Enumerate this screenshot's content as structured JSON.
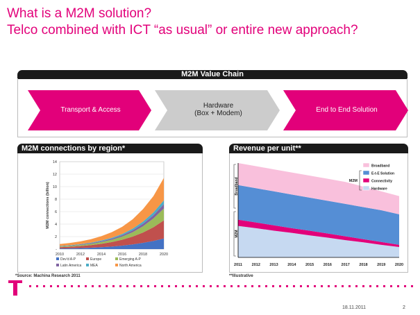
{
  "slide": {
    "title_line1": "What is a M2M solution?",
    "title_line2": "Telco combined with ICT “as usual” or entire new approach?",
    "date": "18.11.2011",
    "page_number": "2",
    "accent_color": "#e2007a"
  },
  "value_chain": {
    "header": "M2M Value Chain",
    "steps": [
      {
        "label": "Transport & Access",
        "color": "#e2007a"
      },
      {
        "label_line1": "Hardware",
        "label_line2": "(Box + Modem)",
        "color": "#cccccc"
      },
      {
        "label": "End to End Solution",
        "color": "#e2007a"
      }
    ]
  },
  "connections_panel": {
    "header": "M2M connections by region*",
    "footnote": "*Source: Machina Research 2011"
  },
  "revenue_panel": {
    "header": "Revenue per unit**",
    "footnote": "**Illustrative"
  },
  "chart_data": [
    {
      "type": "area",
      "stacked": true,
      "ylabel": "M2M connections (billion)",
      "ylim": [
        0,
        14
      ],
      "yticks": [
        "-",
        "2",
        "4",
        "6",
        "8",
        "10",
        "12",
        "14"
      ],
      "x": [
        2010,
        2011,
        2012,
        2013,
        2014,
        2015,
        2016,
        2017,
        2018,
        2019,
        2020
      ],
      "xticks": [
        "2010",
        "2012",
        "2014",
        "2016",
        "2018",
        "2020"
      ],
      "legend_position": "bottom",
      "series": [
        {
          "name": "Dev'd A-P",
          "color": "#4472c4",
          "values": [
            0.1,
            0.13,
            0.17,
            0.22,
            0.3,
            0.4,
            0.55,
            0.75,
            1.0,
            1.3,
            1.7
          ]
        },
        {
          "name": "Europe",
          "color": "#c0504d",
          "values": [
            0.2,
            0.25,
            0.32,
            0.42,
            0.55,
            0.72,
            0.95,
            1.25,
            1.65,
            2.2,
            2.9
          ]
        },
        {
          "name": "Emerging A-P",
          "color": "#9bbb59",
          "values": [
            0.1,
            0.12,
            0.15,
            0.2,
            0.27,
            0.37,
            0.5,
            0.7,
            1.0,
            1.4,
            1.9
          ]
        },
        {
          "name": "Latin America",
          "color": "#8064a2",
          "values": [
            0.05,
            0.06,
            0.08,
            0.1,
            0.13,
            0.17,
            0.22,
            0.3,
            0.4,
            0.52,
            0.7
          ]
        },
        {
          "name": "MEA",
          "color": "#4bacc6",
          "values": [
            0.05,
            0.06,
            0.07,
            0.09,
            0.12,
            0.15,
            0.2,
            0.27,
            0.35,
            0.46,
            0.6
          ]
        },
        {
          "name": "North America",
          "color": "#f79646",
          "values": [
            0.3,
            0.36,
            0.44,
            0.55,
            0.7,
            0.9,
            1.15,
            1.5,
            2.0,
            2.6,
            3.6
          ]
        }
      ]
    },
    {
      "type": "area",
      "stacked": true,
      "x": [
        "2011",
        "2012",
        "2013",
        "2014",
        "2015",
        "2016",
        "2017",
        "2018",
        "2019",
        "2020"
      ],
      "axis_segment_labels": [
        "Breadband",
        "M2M"
      ],
      "legend_group_label": "M2M",
      "legend_position": "top-right",
      "series": [
        {
          "name": "Hardware",
          "color": "#c6d9f1",
          "values": [
            10,
            9.3,
            8.5,
            7.8,
            7,
            6.3,
            5.5,
            4.8,
            4,
            3.3
          ]
        },
        {
          "name": "Connectivity",
          "color": "#e2007a",
          "values": [
            12,
            11.1,
            10.2,
            9.3,
            8.5,
            7.6,
            6.7,
            5.8,
            4.9,
            4
          ]
        },
        {
          "name": "E-t-E Solution",
          "color": "#558ed5",
          "values": [
            23,
            22,
            21,
            20,
            19,
            18,
            17,
            16,
            15,
            13.7
          ]
        },
        {
          "name": "Broadband",
          "color": "#f9c0dc",
          "values": [
            30,
            29,
            28,
            27,
            26,
            25,
            24,
            22.5,
            21,
            19.5
          ]
        }
      ]
    }
  ]
}
